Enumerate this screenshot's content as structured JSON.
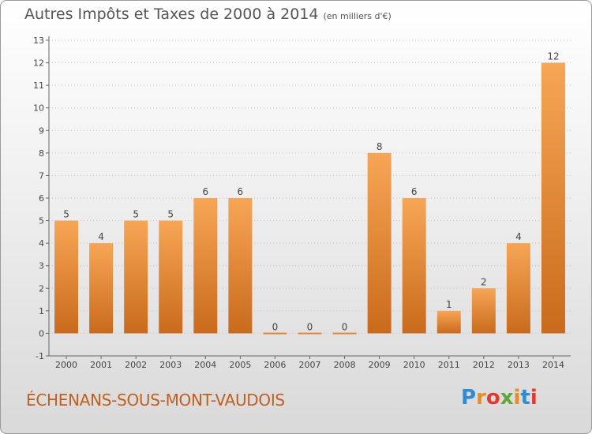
{
  "title": {
    "main": "Autres Impôts et Taxes de 2000 à 2014",
    "unit": "(en milliers d'€)"
  },
  "commune": "ÉCHENANS-SOUS-MONT-VAUDOIS",
  "logo": {
    "letters": [
      "P",
      "r",
      "o",
      "x",
      "i",
      "t",
      "i"
    ],
    "colors": [
      "#2e8bd6",
      "#f08a1c",
      "#e53a2b",
      "#5fa834",
      "#f08a1c",
      "#2e8bd6",
      "#e53a2b"
    ]
  },
  "colors": {
    "bar_light": "#f7a655",
    "bar_dark": "#c96a1c",
    "grid": "#c4c4c4",
    "axis": "#666666"
  },
  "chart_data": {
    "type": "bar",
    "categories": [
      "2000",
      "2001",
      "2002",
      "2003",
      "2004",
      "2005",
      "2006",
      "2007",
      "2008",
      "2009",
      "2010",
      "2011",
      "2012",
      "2013",
      "2014"
    ],
    "values": [
      5,
      4,
      5,
      5,
      6,
      6,
      0,
      0,
      0,
      8,
      6,
      1,
      2,
      4,
      12
    ],
    "value_labels": [
      "5",
      "4",
      "5",
      "5",
      "6",
      "6",
      "0",
      "0",
      "0",
      "8",
      "6",
      "1",
      "2",
      "4",
      "12"
    ],
    "ylim": [
      -1,
      13
    ],
    "yticks": [
      "-1",
      "0",
      "1",
      "2",
      "3",
      "4",
      "5",
      "6",
      "7",
      "8",
      "9",
      "10",
      "11",
      "12",
      "13"
    ],
    "grid": true
  }
}
